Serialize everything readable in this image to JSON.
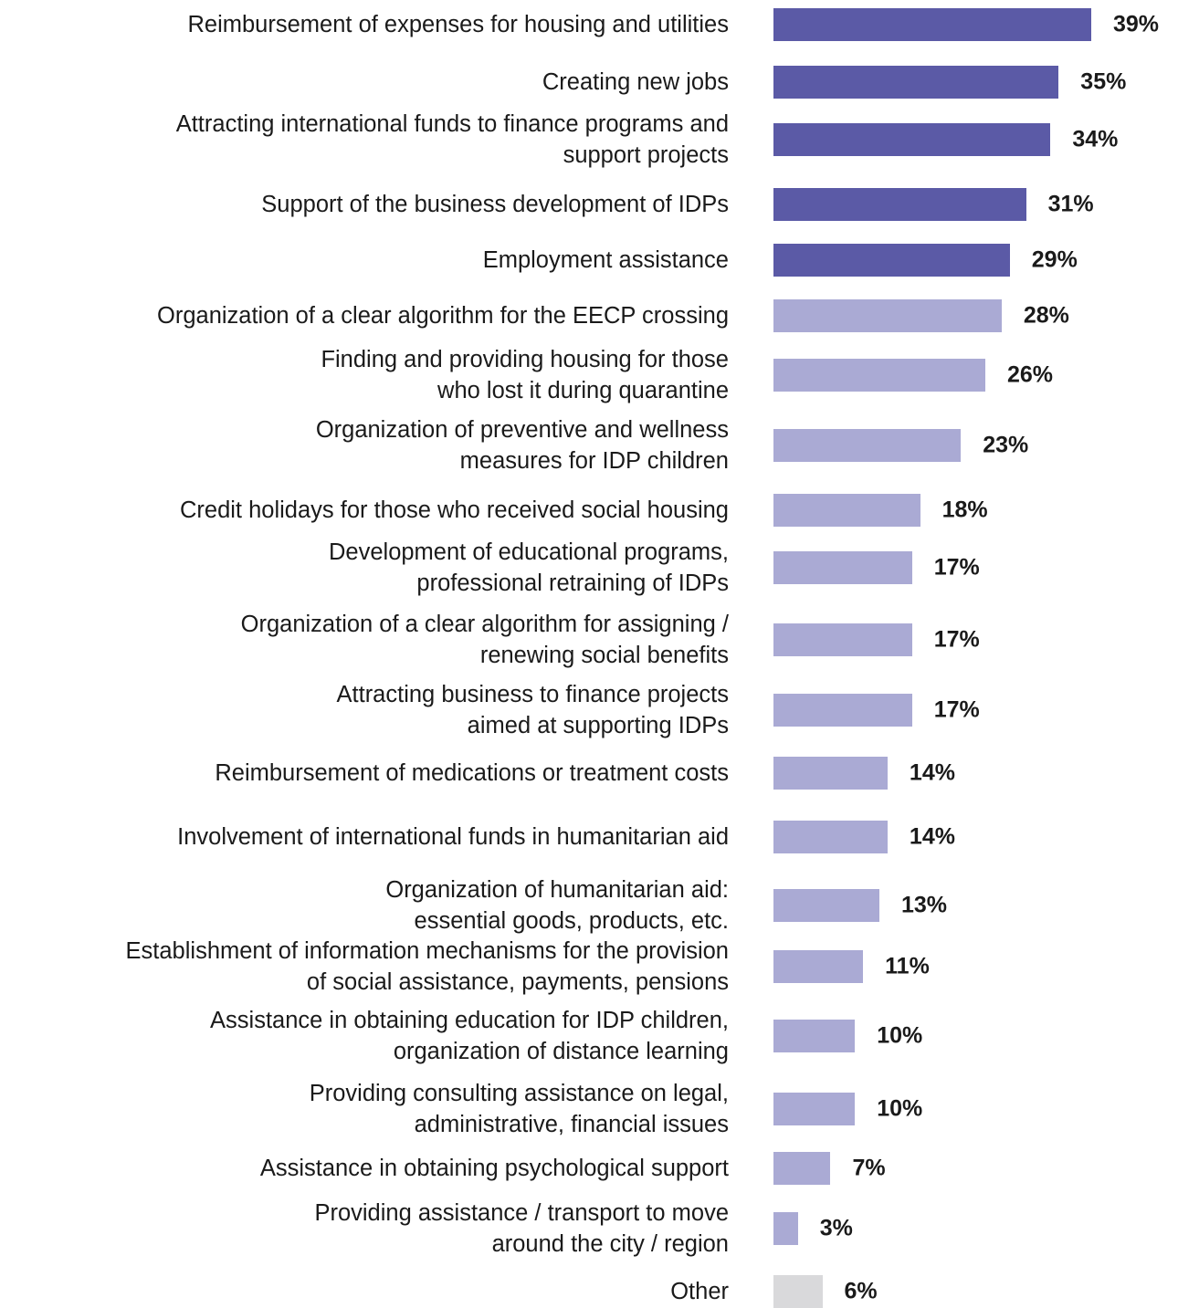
{
  "chart_data": {
    "type": "bar",
    "orientation": "horizontal",
    "categories": [
      "Reimbursement of expenses for housing and utilities",
      "Creating new jobs",
      "Attracting international funds to finance programs and\nsupport projects",
      "Support of the business development of IDPs",
      "Employment assistance",
      "Organization of a clear algorithm for the EECP crossing",
      "Finding and providing housing for those\nwho lost it during quarantine",
      "Organization of preventive and wellness\nmeasures for IDP children",
      "Credit holidays for those who received social housing",
      "Development of educational programs,\nprofessional retraining of IDPs",
      "Organization of a clear algorithm for assigning /\nrenewing social benefits",
      "Attracting business to finance projects\naimed at supporting IDPs",
      "Reimbursement of medications or treatment costs",
      "Involvement of international funds in humanitarian aid",
      "Organization of humanitarian aid:\nessential goods, products, etc.",
      "Establishment of information mechanisms for the provision\nof social assistance, payments, pensions",
      "Assistance in obtaining education for IDP children,\norganization of distance learning",
      "Providing consulting assistance on legal,\nadministrative, financial issues",
      "Assistance in obtaining psychological support",
      "Providing assistance / transport to move\naround the city / region",
      "Other"
    ],
    "values": [
      39,
      35,
      34,
      31,
      29,
      28,
      26,
      23,
      18,
      17,
      17,
      17,
      14,
      14,
      13,
      11,
      10,
      10,
      7,
      3,
      6
    ],
    "value_labels": [
      "39%",
      "35%",
      "34%",
      "31%",
      "29%",
      "28%",
      "26%",
      "23%",
      "18%",
      "17%",
      "17%",
      "17%",
      "14%",
      "14%",
      "13%",
      "11%",
      "10%",
      "10%",
      "7%",
      "3%",
      "6%"
    ],
    "colors": [
      "#5b5aa6",
      "#5b5aa6",
      "#5b5aa6",
      "#5b5aa6",
      "#5b5aa6",
      "#aaaad4",
      "#aaaad4",
      "#aaaad4",
      "#aaaad4",
      "#aaaad4",
      "#aaaad4",
      "#aaaad4",
      "#aaaad4",
      "#aaaad4",
      "#aaaad4",
      "#aaaad4",
      "#aaaad4",
      "#aaaad4",
      "#aaaad4",
      "#aaaad4",
      "#d9d9db"
    ]
  }
}
